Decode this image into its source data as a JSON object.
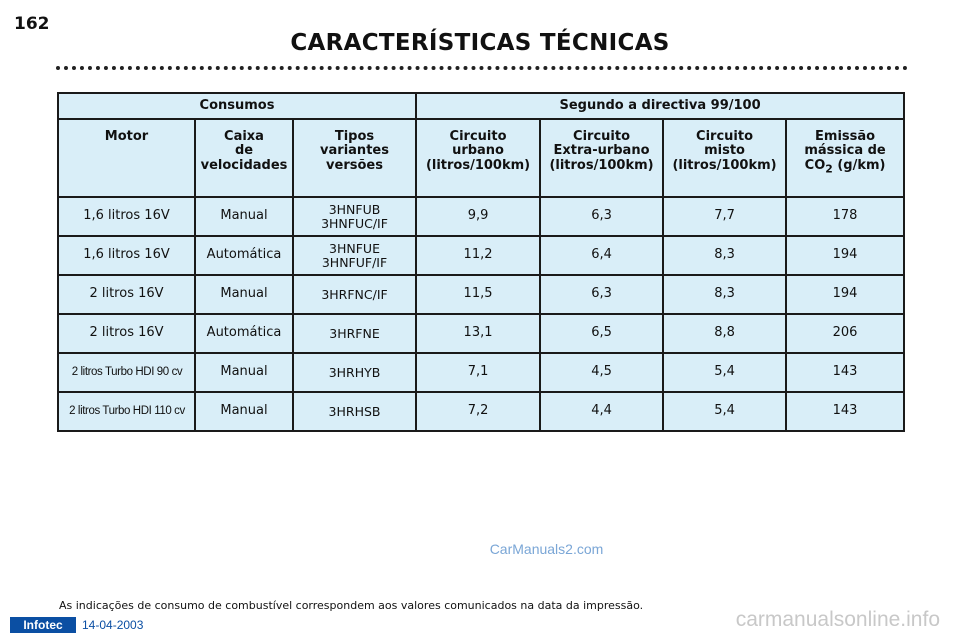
{
  "page_number": "162",
  "title": "CARACTERÍSTICAS TÉCNICAS",
  "table": {
    "group_left": "Consumos",
    "group_right": "Segundo a directiva 99/100",
    "headers": {
      "motor": "Motor",
      "gearbox": [
        "Caixa",
        "de",
        "velocidades"
      ],
      "variants": [
        "Tipos",
        "variantes",
        "versões"
      ],
      "urban": [
        "Circuito",
        "urbano",
        "(litros/100km)"
      ],
      "extra_urban": [
        "Circuito",
        "Extra-urbano",
        "(litros/100km)"
      ],
      "mixed": [
        "Circuito",
        "misto",
        "(litros/100km)"
      ],
      "emission_l1": "Emissão",
      "emission_l2": "mássica de",
      "emission_co": "CO",
      "emission_sub": "2",
      "emission_unit": " (g/km)"
    },
    "rows": [
      {
        "motor": "1,6 litros 16V",
        "gearbox": "Manual",
        "variant_1": "3HNFUB",
        "variant_2": "3HNFUC/IF",
        "urban": "9,9",
        "extra_urban": "6,3",
        "mixed": "7,7",
        "co2": "178"
      },
      {
        "motor": "1,6 litros 16V",
        "gearbox": "Automática",
        "variant_1": "3HNFUE",
        "variant_2": "3HNFUF/IF",
        "urban": "11,2",
        "extra_urban": "6,4",
        "mixed": "8,3",
        "co2": "194"
      },
      {
        "motor": "2 litros 16V",
        "gearbox": "Manual",
        "variant_1": "3HRFNC/IF",
        "variant_2": "",
        "urban": "11,5",
        "extra_urban": "6,3",
        "mixed": "8,3",
        "co2": "194"
      },
      {
        "motor": "2 litros 16V",
        "gearbox": "Automática",
        "variant_1": "3HRFNE",
        "variant_2": "",
        "urban": "13,1",
        "extra_urban": "6,5",
        "mixed": "8,8",
        "co2": "206"
      },
      {
        "motor": "2 litros Turbo HDI 90 cv",
        "gearbox": "Manual",
        "variant_1": "3HRHYB",
        "variant_2": "",
        "urban": "7,1",
        "extra_urban": "4,5",
        "mixed": "5,4",
        "co2": "143"
      },
      {
        "motor": "2 litros Turbo HDI 110 cv",
        "gearbox": "Manual",
        "variant_1": "3HRHSB",
        "variant_2": "",
        "urban": "7,2",
        "extra_urban": "4,4",
        "mixed": "5,4",
        "co2": "143"
      }
    ]
  },
  "watermark": "CarManuals2.com",
  "footnote": "As indicações de consumo de combustível correspondem aos valores comunicados na data da impressão.",
  "footer": {
    "brand": "Infotec",
    "date": "14-04-2003",
    "site": "carmanualsonline.info"
  },
  "colors": {
    "table_bg": "#d9eef8",
    "brand_blue": "#0b4fa3",
    "watermark": "#7aa6d6"
  }
}
